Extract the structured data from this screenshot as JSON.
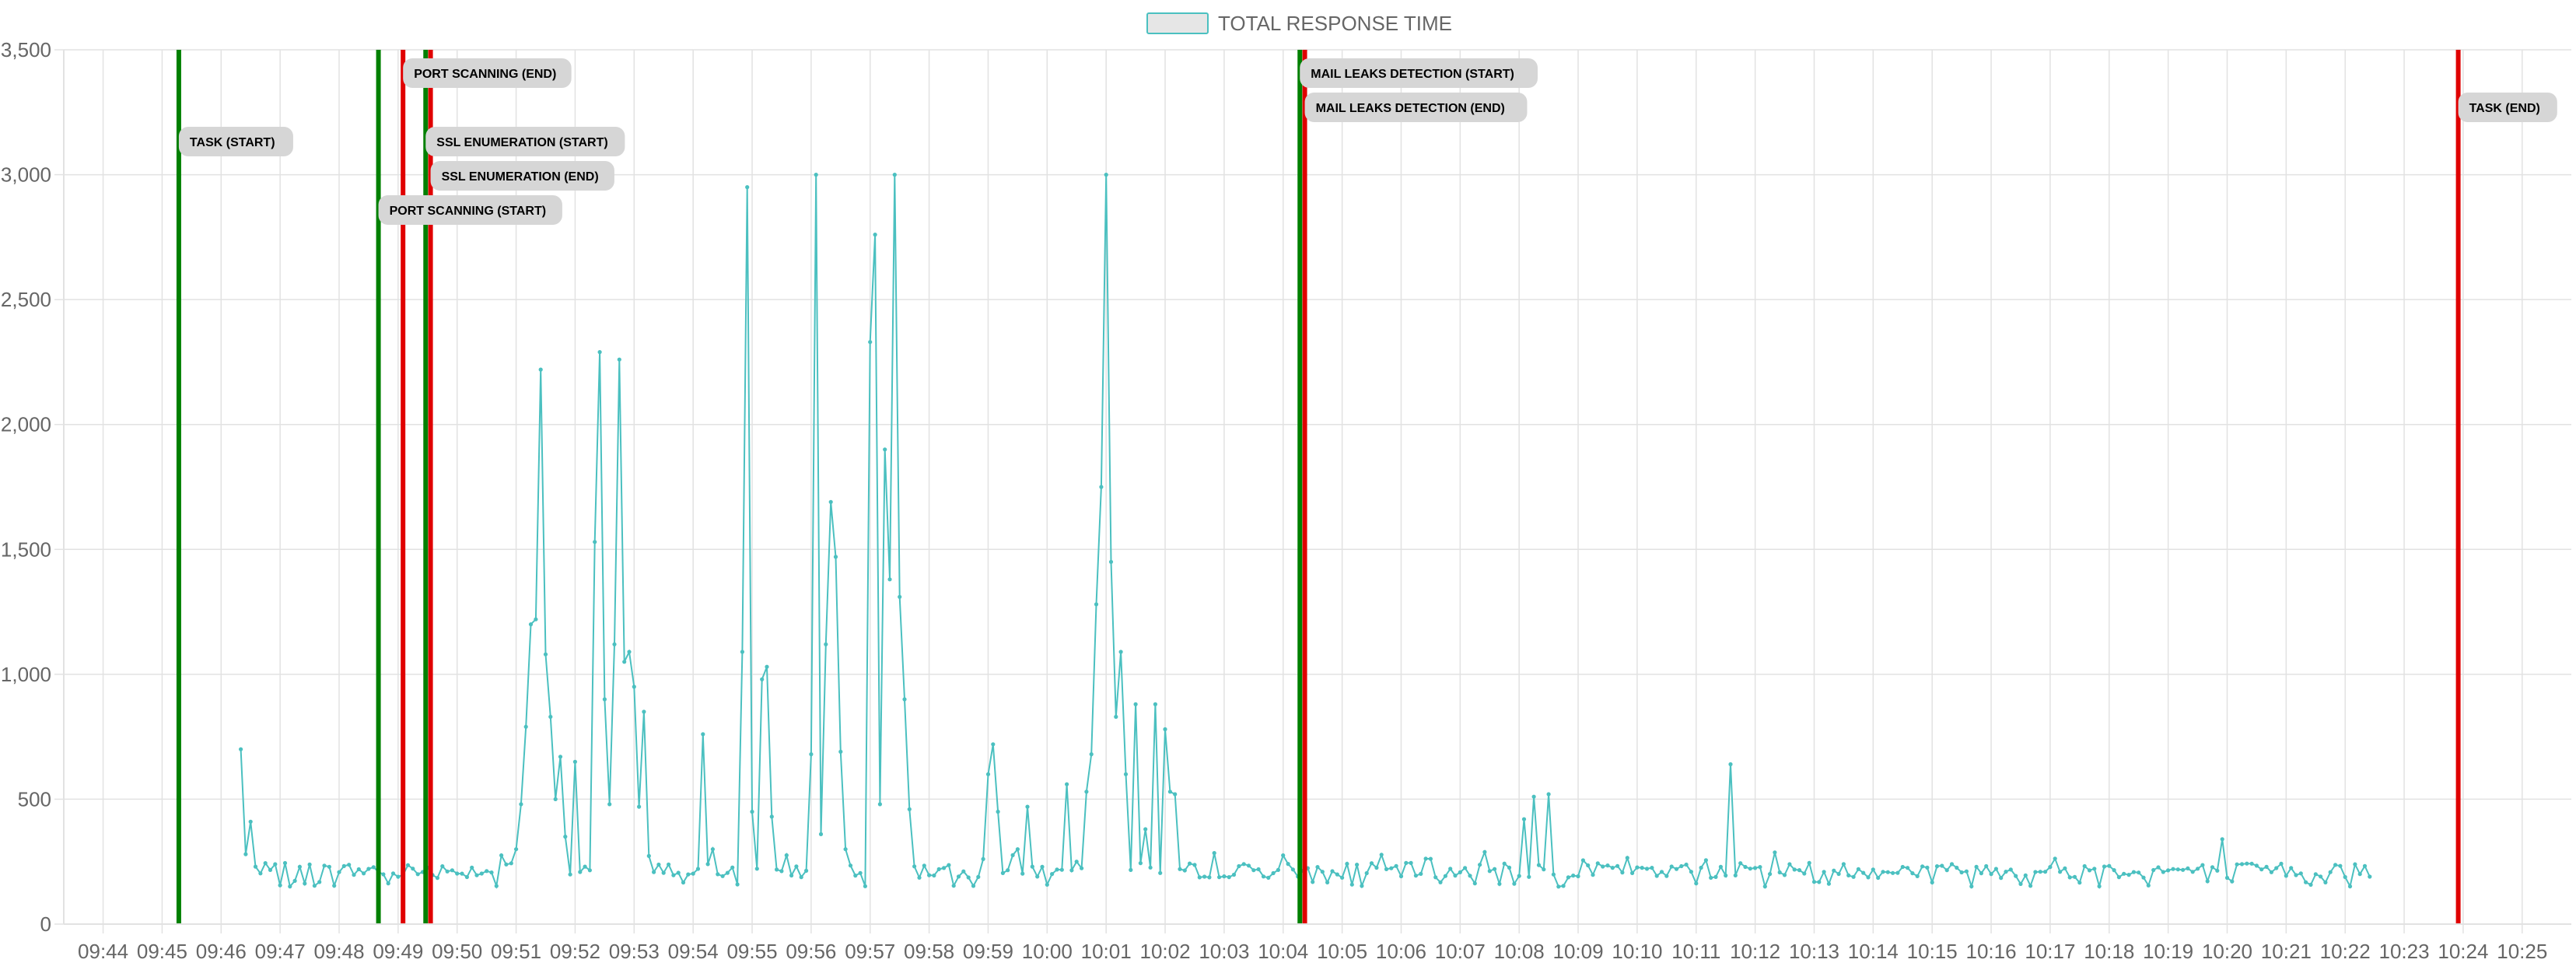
{
  "chart_data": {
    "type": "line",
    "legend": {
      "label": "TOTAL RESPONSE TIME",
      "placement": "top-center"
    },
    "colors": {
      "series": "#4bc0c0",
      "series_fill": "#e6e6e6",
      "start_marker": "#008000",
      "end_marker": "#e00000",
      "label_bg": "#d6d6d6",
      "grid": "#e2e2e2",
      "tick_text": "#666666"
    },
    "grid": true,
    "x_axis": {
      "min": "09:44",
      "max": "10:25",
      "ticks": [
        "09:44",
        "09:45",
        "09:46",
        "09:47",
        "09:48",
        "09:49",
        "09:50",
        "09:51",
        "09:52",
        "09:53",
        "09:54",
        "09:55",
        "09:56",
        "09:57",
        "09:58",
        "09:59",
        "10:00",
        "10:01",
        "10:02",
        "10:03",
        "10:04",
        "10:05",
        "10:06",
        "10:07",
        "10:08",
        "10:09",
        "10:10",
        "10:11",
        "10:12",
        "10:13",
        "10:14",
        "10:15",
        "10:16",
        "10:17",
        "10:18",
        "10:19",
        "10:20",
        "10:21",
        "10:22",
        "10:23",
        "10:24",
        "10:25"
      ]
    },
    "y_axis": {
      "min": 0,
      "max": 3500,
      "ticks": [
        0,
        500,
        1000,
        1500,
        2000,
        2500,
        3000,
        3500
      ],
      "tick_labels": [
        "0",
        "500",
        "1,000",
        "1,500",
        "2,000",
        "2,500",
        "3,000",
        "3,500"
      ]
    },
    "series": [
      {
        "range": [
          "09:46:20",
          "10:22:25"
        ],
        "baseline": 215,
        "points": [
          [
            "09:46:20",
            700
          ],
          [
            "09:46:25",
            280
          ],
          [
            "09:46:30",
            410
          ],
          [
            "09:46:35",
            230
          ],
          [
            "09:51:00",
            300
          ],
          [
            "09:51:05",
            480
          ],
          [
            "09:51:10",
            790
          ],
          [
            "09:51:15",
            1200
          ],
          [
            "09:51:20",
            1220
          ],
          [
            "09:51:25",
            2220
          ],
          [
            "09:51:30",
            1080
          ],
          [
            "09:51:35",
            830
          ],
          [
            "09:51:40",
            500
          ],
          [
            "09:51:45",
            670
          ],
          [
            "09:51:50",
            350
          ],
          [
            "09:52:00",
            650
          ],
          [
            "09:52:10",
            230
          ],
          [
            "09:52:20",
            1530
          ],
          [
            "09:52:25",
            2290
          ],
          [
            "09:52:30",
            900
          ],
          [
            "09:52:35",
            480
          ],
          [
            "09:52:40",
            1120
          ],
          [
            "09:52:45",
            2260
          ],
          [
            "09:52:50",
            1050
          ],
          [
            "09:52:55",
            1090
          ],
          [
            "09:53:00",
            950
          ],
          [
            "09:53:05",
            470
          ],
          [
            "09:53:10",
            850
          ],
          [
            "09:54:10",
            760
          ],
          [
            "09:54:20",
            300
          ],
          [
            "09:54:50",
            1090
          ],
          [
            "09:54:55",
            2950
          ],
          [
            "09:55:00",
            450
          ],
          [
            "09:55:10",
            980
          ],
          [
            "09:55:15",
            1030
          ],
          [
            "09:55:20",
            430
          ],
          [
            "09:56:00",
            680
          ],
          [
            "09:56:05",
            3000
          ],
          [
            "09:56:10",
            360
          ],
          [
            "09:56:15",
            1120
          ],
          [
            "09:56:20",
            1690
          ],
          [
            "09:56:25",
            1470
          ],
          [
            "09:56:30",
            690
          ],
          [
            "09:56:35",
            300
          ],
          [
            "09:57:00",
            2330
          ],
          [
            "09:57:05",
            2760
          ],
          [
            "09:57:10",
            480
          ],
          [
            "09:57:15",
            1900
          ],
          [
            "09:57:20",
            1380
          ],
          [
            "09:57:25",
            3000
          ],
          [
            "09:57:30",
            1310
          ],
          [
            "09:57:35",
            900
          ],
          [
            "09:57:40",
            460
          ],
          [
            "09:59:00",
            600
          ],
          [
            "09:59:05",
            720
          ],
          [
            "09:59:10",
            450
          ],
          [
            "09:59:30",
            300
          ],
          [
            "09:59:40",
            470
          ],
          [
            "10:00:20",
            560
          ],
          [
            "10:00:30",
            250
          ],
          [
            "10:00:40",
            530
          ],
          [
            "10:00:45",
            680
          ],
          [
            "10:00:50",
            1280
          ],
          [
            "10:00:55",
            1750
          ],
          [
            "10:01:00",
            3000
          ],
          [
            "10:01:05",
            1450
          ],
          [
            "10:01:10",
            830
          ],
          [
            "10:01:15",
            1090
          ],
          [
            "10:01:20",
            600
          ],
          [
            "10:01:30",
            880
          ],
          [
            "10:01:40",
            380
          ],
          [
            "10:01:50",
            880
          ],
          [
            "10:02:00",
            780
          ],
          [
            "10:02:05",
            530
          ],
          [
            "10:02:10",
            520
          ],
          [
            "10:02:15",
            220
          ],
          [
            "10:08:05",
            420
          ],
          [
            "10:08:15",
            510
          ],
          [
            "10:08:30",
            520
          ],
          [
            "10:11:35",
            640
          ],
          [
            "10:19:55",
            340
          ],
          [
            "10:22:25",
            190
          ]
        ]
      }
    ],
    "markers": [
      {
        "label": "TASK (START)",
        "time": "09:45:17",
        "kind": "start",
        "label_row": 3
      },
      {
        "label": "PORT SCANNING (START)",
        "time": "09:48:40",
        "kind": "start",
        "label_row": 5
      },
      {
        "label": "PORT SCANNING (END)",
        "time": "09:49:05",
        "kind": "end",
        "label_row": 1
      },
      {
        "label": "SSL ENUMERATION (START)",
        "time": "09:49:28",
        "kind": "start",
        "label_row": 3
      },
      {
        "label": "SSL ENUMERATION (END)",
        "time": "09:49:33",
        "kind": "end",
        "label_row": 4
      },
      {
        "label": "MAIL LEAKS DETECTION (START)",
        "time": "10:04:17",
        "kind": "start",
        "label_row": 1
      },
      {
        "label": "MAIL LEAKS DETECTION (END)",
        "time": "10:04:22",
        "kind": "end",
        "label_row": 2
      },
      {
        "label": "TASK (END)",
        "time": "10:23:55",
        "kind": "end",
        "label_row": 2
      }
    ]
  }
}
